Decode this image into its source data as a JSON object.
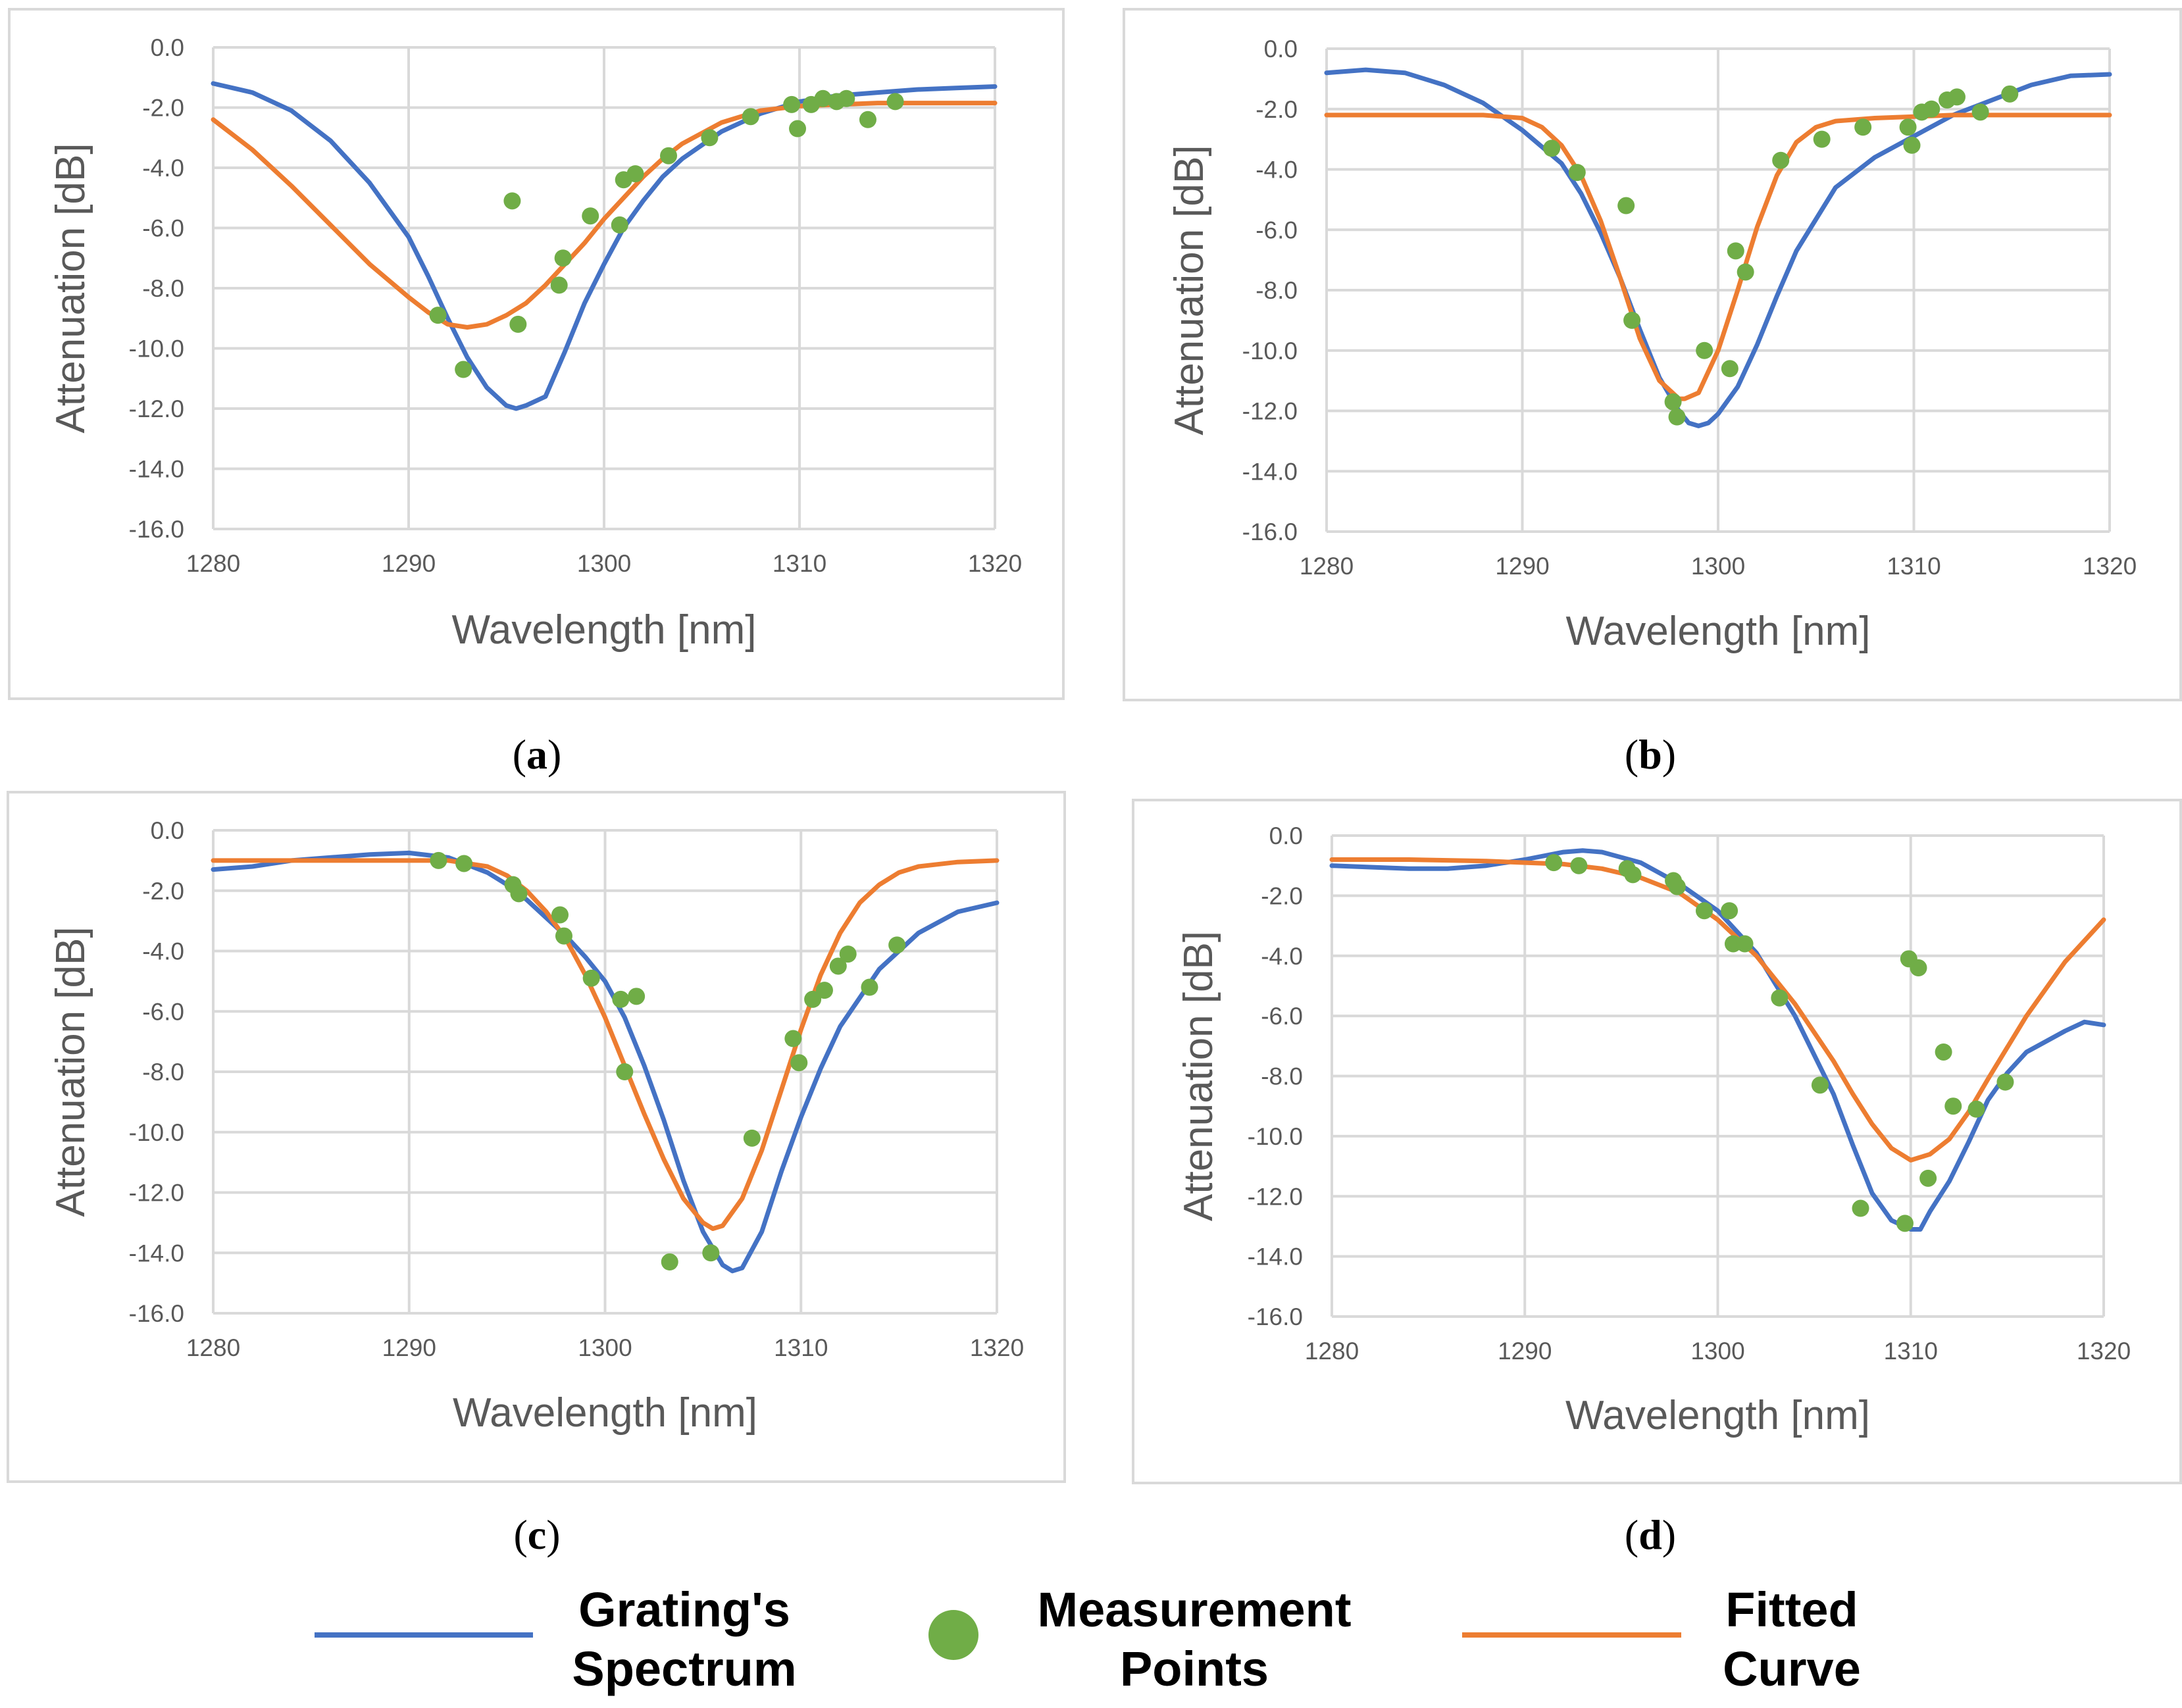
{
  "colors": {
    "spectrum": "#4472c4",
    "measurement": "#70ad47",
    "fitted": "#ed7d31"
  },
  "legend": {
    "spectrum_line1": "Grating's",
    "spectrum_line2": "Spectrum",
    "measurement_line1": "Measurement",
    "measurement_line2": "Points",
    "fitted_line1": "Fitted",
    "fitted_line2": "Curve"
  },
  "chart_data": [
    {
      "panel": "a",
      "type": "line",
      "xlabel": "Wavelength [nm]",
      "ylabel": "Attenuation [dB]",
      "xlim": [
        1280,
        1320
      ],
      "ylim": [
        -16,
        0
      ],
      "xticks": [
        "1280",
        "1290",
        "1300",
        "1310",
        "1320"
      ],
      "yticks": [
        "0.0",
        "-2.0",
        "-4.0",
        "-6.0",
        "-8.0",
        "-10.0",
        "-12.0",
        "-14.0",
        "-16.0"
      ],
      "label_open": "(",
      "label_letter": "a",
      "label_close": ")",
      "spectrum": {
        "x": [
          1280,
          1282,
          1284,
          1286,
          1288,
          1290,
          1291,
          1292,
          1293,
          1294,
          1295,
          1295.5,
          1296,
          1297,
          1298,
          1299,
          1300,
          1301,
          1302,
          1303,
          1304,
          1306,
          1308,
          1310,
          1312,
          1314,
          1316,
          1318,
          1320
        ],
        "y": [
          -1.2,
          -1.5,
          -2.1,
          -3.1,
          -4.5,
          -6.3,
          -7.6,
          -9.0,
          -10.3,
          -11.3,
          -11.9,
          -12.0,
          -11.9,
          -11.6,
          -10.1,
          -8.5,
          -7.2,
          -6.0,
          -5.1,
          -4.3,
          -3.7,
          -2.8,
          -2.2,
          -1.8,
          -1.6,
          -1.5,
          -1.4,
          -1.35,
          -1.3
        ]
      },
      "fitted": {
        "x": [
          1280,
          1282,
          1284,
          1286,
          1288,
          1290,
          1291,
          1292,
          1293,
          1294,
          1295,
          1296,
          1297,
          1298,
          1299,
          1300,
          1301,
          1302,
          1303,
          1304,
          1306,
          1308,
          1310,
          1312,
          1314,
          1316,
          1320
        ],
        "y": [
          -2.4,
          -3.4,
          -4.6,
          -5.9,
          -7.2,
          -8.3,
          -8.8,
          -9.2,
          -9.3,
          -9.2,
          -8.9,
          -8.5,
          -7.9,
          -7.2,
          -6.5,
          -5.7,
          -5.0,
          -4.3,
          -3.7,
          -3.2,
          -2.5,
          -2.1,
          -1.95,
          -1.9,
          -1.85,
          -1.85,
          -1.85
        ]
      },
      "points": {
        "x": [
          1291.5,
          1292.8,
          1295.3,
          1295.6,
          1297.7,
          1297.9,
          1299.3,
          1300.8,
          1301.0,
          1301.6,
          1303.3,
          1305.4,
          1307.5,
          1309.6,
          1309.9,
          1310.6,
          1311.2,
          1311.9,
          1312.4,
          1313.5,
          1314.9
        ],
        "y": [
          -8.9,
          -10.7,
          -5.1,
          -9.2,
          -7.9,
          -7.0,
          -5.6,
          -5.9,
          -4.4,
          -4.2,
          -3.6,
          -3.0,
          -2.3,
          -1.9,
          -2.7,
          -1.9,
          -1.7,
          -1.8,
          -1.7,
          -2.4,
          -1.8
        ]
      }
    },
    {
      "panel": "b",
      "type": "line",
      "xlabel": "Wavelength [nm]",
      "ylabel": "Attenuation [dB]",
      "xlim": [
        1280,
        1320
      ],
      "ylim": [
        -16,
        0
      ],
      "xticks": [
        "1280",
        "1290",
        "1300",
        "1310",
        "1320"
      ],
      "yticks": [
        "0.0",
        "-2.0",
        "-4.0",
        "-6.0",
        "-8.0",
        "-10.0",
        "-12.0",
        "-14.0",
        "-16.0"
      ],
      "label_open": "(",
      "label_letter": "b",
      "label_close": ")",
      "spectrum": {
        "x": [
          1280,
          1282,
          1284,
          1286,
          1288,
          1290,
          1292,
          1293,
          1294,
          1295,
          1296,
          1297,
          1298,
          1298.5,
          1299,
          1299.5,
          1300,
          1301,
          1302,
          1303,
          1304,
          1306,
          1308,
          1310,
          1312,
          1314,
          1316,
          1318,
          1320
        ],
        "y": [
          -0.8,
          -0.7,
          -0.8,
          -1.2,
          -1.8,
          -2.7,
          -3.8,
          -4.8,
          -6.1,
          -7.6,
          -9.3,
          -10.9,
          -12.0,
          -12.4,
          -12.5,
          -12.4,
          -12.1,
          -11.2,
          -9.8,
          -8.2,
          -6.7,
          -4.6,
          -3.6,
          -2.9,
          -2.2,
          -1.7,
          -1.2,
          -0.9,
          -0.85
        ]
      },
      "fitted": {
        "x": [
          1280,
          1284,
          1288,
          1290,
          1291,
          1292,
          1293,
          1294,
          1295,
          1296,
          1297,
          1298,
          1298.3,
          1299,
          1300,
          1301,
          1302,
          1303,
          1304,
          1305,
          1306,
          1308,
          1310,
          1312,
          1316,
          1320
        ],
        "y": [
          -2.2,
          -2.2,
          -2.2,
          -2.3,
          -2.6,
          -3.2,
          -4.2,
          -5.7,
          -7.6,
          -9.6,
          -11.0,
          -11.6,
          -11.6,
          -11.4,
          -10.0,
          -8.0,
          -5.9,
          -4.2,
          -3.1,
          -2.6,
          -2.4,
          -2.3,
          -2.25,
          -2.2,
          -2.2,
          -2.2
        ]
      },
      "points": {
        "x": [
          1291.5,
          1292.8,
          1295.3,
          1295.6,
          1297.7,
          1297.9,
          1299.3,
          1300.6,
          1300.9,
          1301.4,
          1303.2,
          1305.3,
          1307.4,
          1309.7,
          1309.9,
          1310.4,
          1310.9,
          1311.7,
          1312.2,
          1313.4,
          1314.9
        ],
        "y": [
          -3.3,
          -4.1,
          -5.2,
          -9.0,
          -11.7,
          -12.2,
          -10.0,
          -10.6,
          -6.7,
          -7.4,
          -3.7,
          -3.0,
          -2.6,
          -2.6,
          -3.2,
          -2.1,
          -2.0,
          -1.7,
          -1.6,
          -2.1,
          -1.5
        ]
      }
    },
    {
      "panel": "c",
      "type": "line",
      "xlabel": "Wavelength [nm]",
      "ylabel": "Attenuation [dB]",
      "xlim": [
        1280,
        1320
      ],
      "ylim": [
        -16,
        0
      ],
      "xticks": [
        "1280",
        "1290",
        "1300",
        "1310",
        "1320"
      ],
      "yticks": [
        "0.0",
        "-2.0",
        "-4.0",
        "-6.0",
        "-8.0",
        "-10.0",
        "-12.0",
        "-14.0",
        "-16.0"
      ],
      "label_open": "(",
      "label_letter": "c",
      "label_close": ")",
      "spectrum": {
        "x": [
          1280,
          1282,
          1284,
          1286,
          1288,
          1290,
          1292,
          1294,
          1295,
          1296,
          1297,
          1298,
          1299,
          1300,
          1301,
          1302,
          1303,
          1304,
          1305,
          1306,
          1306.5,
          1307,
          1308,
          1309,
          1310,
          1311,
          1312,
          1314,
          1316,
          1318,
          1320
        ],
        "y": [
          -1.3,
          -1.2,
          -1.0,
          -0.9,
          -0.8,
          -0.75,
          -0.9,
          -1.4,
          -1.8,
          -2.3,
          -2.9,
          -3.5,
          -4.2,
          -5.0,
          -6.2,
          -7.8,
          -9.6,
          -11.6,
          -13.3,
          -14.4,
          -14.6,
          -14.5,
          -13.3,
          -11.3,
          -9.5,
          -7.9,
          -6.5,
          -4.6,
          -3.4,
          -2.7,
          -2.4
        ]
      },
      "fitted": {
        "x": [
          1280,
          1284,
          1288,
          1292,
          1294,
          1295,
          1296,
          1297,
          1298,
          1299,
          1300,
          1301,
          1302,
          1303,
          1304,
          1305,
          1305.5,
          1306,
          1307,
          1308,
          1309,
          1310,
          1311,
          1312,
          1313,
          1314,
          1315,
          1316,
          1318,
          1320
        ],
        "y": [
          -1.0,
          -1.0,
          -1.0,
          -1.0,
          -1.2,
          -1.5,
          -2.0,
          -2.7,
          -3.6,
          -4.8,
          -6.2,
          -7.8,
          -9.4,
          -10.9,
          -12.2,
          -13.0,
          -13.2,
          -13.1,
          -12.2,
          -10.6,
          -8.6,
          -6.6,
          -4.8,
          -3.4,
          -2.4,
          -1.8,
          -1.4,
          -1.2,
          -1.05,
          -1.0
        ]
      },
      "points": {
        "x": [
          1291.5,
          1292.8,
          1295.3,
          1295.6,
          1297.7,
          1297.9,
          1299.3,
          1300.8,
          1301.0,
          1301.6,
          1303.3,
          1305.4,
          1307.5,
          1309.6,
          1309.9,
          1310.6,
          1311.2,
          1311.9,
          1312.4,
          1313.5,
          1314.9
        ],
        "y": [
          -1.0,
          -1.1,
          -1.8,
          -2.1,
          -2.8,
          -3.5,
          -4.9,
          -5.6,
          -8.0,
          -5.5,
          -14.3,
          -14.0,
          -10.2,
          -6.9,
          -7.7,
          -5.6,
          -5.3,
          -4.5,
          -4.1,
          -5.2,
          -3.8
        ]
      }
    },
    {
      "panel": "d",
      "type": "line",
      "xlabel": "Wavelength [nm]",
      "ylabel": "Attenuation [dB]",
      "xlim": [
        1280,
        1320
      ],
      "ylim": [
        -16,
        0
      ],
      "xticks": [
        "1280",
        "1290",
        "1300",
        "1310",
        "1320"
      ],
      "yticks": [
        "0.0",
        "-2.0",
        "-4.0",
        "-6.0",
        "-8.0",
        "-10.0",
        "-12.0",
        "-14.0",
        "-16.0"
      ],
      "label_open": "(",
      "label_letter": "d",
      "label_close": ")",
      "spectrum": {
        "x": [
          1280,
          1282,
          1284,
          1286,
          1288,
          1290,
          1292,
          1293,
          1294,
          1296,
          1298,
          1300,
          1302,
          1304,
          1306,
          1307,
          1308,
          1309,
          1310,
          1310.5,
          1311,
          1312,
          1313,
          1314,
          1315,
          1316,
          1318,
          1319,
          1320
        ],
        "y": [
          -1.0,
          -1.05,
          -1.1,
          -1.1,
          -1.0,
          -0.8,
          -0.55,
          -0.5,
          -0.55,
          -0.9,
          -1.6,
          -2.5,
          -3.9,
          -6.0,
          -8.6,
          -10.3,
          -11.9,
          -12.8,
          -13.1,
          -13.1,
          -12.5,
          -11.5,
          -10.2,
          -8.8,
          -7.9,
          -7.2,
          -6.5,
          -6.2,
          -6.3
        ]
      },
      "fitted": {
        "x": [
          1280,
          1284,
          1288,
          1290,
          1292,
          1294,
          1296,
          1298,
          1300,
          1302,
          1304,
          1306,
          1307,
          1308,
          1309,
          1310,
          1311,
          1312,
          1313,
          1314,
          1316,
          1318,
          1320
        ],
        "y": [
          -0.8,
          -0.8,
          -0.85,
          -0.9,
          -0.95,
          -1.1,
          -1.4,
          -1.9,
          -2.8,
          -4.0,
          -5.6,
          -7.5,
          -8.6,
          -9.6,
          -10.4,
          -10.8,
          -10.6,
          -10.1,
          -9.2,
          -8.1,
          -6.0,
          -4.2,
          -2.8
        ]
      },
      "points": {
        "x": [
          1291.5,
          1292.8,
          1295.3,
          1295.6,
          1297.7,
          1297.9,
          1299.3,
          1300.6,
          1300.8,
          1301.4,
          1303.2,
          1305.3,
          1307.4,
          1309.7,
          1309.9,
          1310.4,
          1310.9,
          1311.7,
          1312.2,
          1313.4,
          1314.9
        ],
        "y": [
          -0.9,
          -1.0,
          -1.1,
          -1.3,
          -1.5,
          -1.7,
          -2.5,
          -2.5,
          -3.6,
          -3.6,
          -5.4,
          -8.3,
          -12.4,
          -12.9,
          -4.1,
          -4.4,
          -11.4,
          -7.2,
          -9.0,
          -9.1,
          -8.2
        ]
      }
    }
  ]
}
